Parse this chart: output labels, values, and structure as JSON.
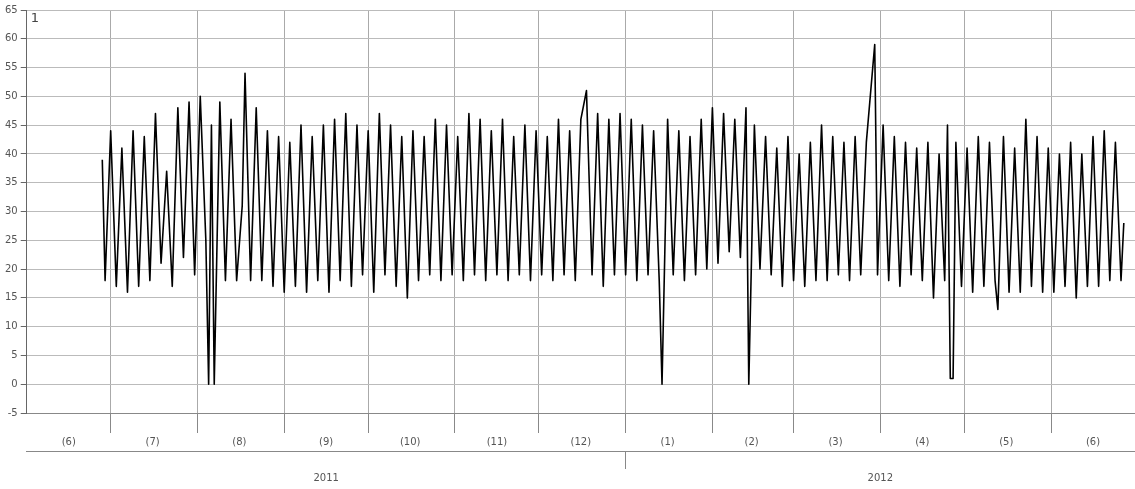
{
  "chart_data": {
    "type": "line",
    "ylabel": "1",
    "color": "#000000",
    "marker": "none",
    "line_style": "solid",
    "grid": true,
    "legend": false,
    "xlim": [
      "2011-06-01",
      "2012-07-01"
    ],
    "xticks": [
      {
        "value": "2011-06-16",
        "label": "(6)"
      },
      {
        "value": "2011-07-01",
        "label": null
      },
      {
        "value": "2011-07-16",
        "label": "(7)"
      },
      {
        "value": "2011-08-01",
        "label": null
      },
      {
        "value": "2011-08-16",
        "label": "(8)"
      },
      {
        "value": "2011-09-01",
        "label": null
      },
      {
        "value": "2011-09-16",
        "label": "(9)"
      },
      {
        "value": "2011-10-01",
        "label": null
      },
      {
        "value": "2011-10-16",
        "label": "(10)"
      },
      {
        "value": "2011-11-01",
        "label": null
      },
      {
        "value": "2011-11-16",
        "label": "(11)"
      },
      {
        "value": "2011-12-01",
        "label": null
      },
      {
        "value": "2011-12-16",
        "label": "(12)"
      },
      {
        "value": "2012-01-01",
        "label": null
      },
      {
        "value": "2012-01-16",
        "label": "(1)"
      },
      {
        "value": "2012-02-01",
        "label": null
      },
      {
        "value": "2012-02-15",
        "label": "(2)"
      },
      {
        "value": "2012-03-01",
        "label": null
      },
      {
        "value": "2012-03-16",
        "label": "(3)"
      },
      {
        "value": "2012-04-01",
        "label": null
      },
      {
        "value": "2012-04-16",
        "label": "(4)"
      },
      {
        "value": "2012-05-01",
        "label": null
      },
      {
        "value": "2012-05-16",
        "label": "(5)"
      },
      {
        "value": "2012-06-01",
        "label": null
      },
      {
        "value": "2012-06-16",
        "label": "(6)"
      }
    ],
    "x2lim": [
      "2011-06-01",
      "2012-07-01"
    ],
    "x2ticks": [
      {
        "value": "2011-09-16",
        "label": "2011"
      },
      {
        "value": "2012-01-01",
        "label": null
      },
      {
        "value": "2012-04-01",
        "label": "2012"
      }
    ],
    "ylim": [
      -5,
      65
    ],
    "yticks": [
      -5,
      0,
      5,
      10,
      15,
      20,
      25,
      30,
      35,
      40,
      45,
      50,
      55,
      60,
      65
    ],
    "x": [
      "2011-06-28",
      "2011-06-29",
      "2011-07-01",
      "2011-07-03",
      "2011-07-05",
      "2011-07-07",
      "2011-07-09",
      "2011-07-11",
      "2011-07-13",
      "2011-07-15",
      "2011-07-17",
      "2011-07-19",
      "2011-07-21",
      "2011-07-23",
      "2011-07-25",
      "2011-07-27",
      "2011-07-29",
      "2011-07-31",
      "2011-08-02",
      "2011-08-04",
      "2011-08-05",
      "2011-08-06",
      "2011-08-07",
      "2011-08-09",
      "2011-08-11",
      "2011-08-13",
      "2011-08-15",
      "2011-08-17",
      "2011-08-18",
      "2011-08-20",
      "2011-08-22",
      "2011-08-24",
      "2011-08-26",
      "2011-08-28",
      "2011-08-30",
      "2011-09-01",
      "2011-09-03",
      "2011-09-05",
      "2011-09-07",
      "2011-09-09",
      "2011-09-11",
      "2011-09-13",
      "2011-09-15",
      "2011-09-17",
      "2011-09-19",
      "2011-09-21",
      "2011-09-23",
      "2011-09-25",
      "2011-09-27",
      "2011-09-29",
      "2011-10-01",
      "2011-10-03",
      "2011-10-05",
      "2011-10-07",
      "2011-10-09",
      "2011-10-11",
      "2011-10-13",
      "2011-10-15",
      "2011-10-17",
      "2011-10-19",
      "2011-10-21",
      "2011-10-23",
      "2011-10-25",
      "2011-10-27",
      "2011-10-29",
      "2011-10-31",
      "2011-11-02",
      "2011-11-04",
      "2011-11-06",
      "2011-11-08",
      "2011-11-10",
      "2011-11-12",
      "2011-11-14",
      "2011-11-16",
      "2011-11-18",
      "2011-11-20",
      "2011-11-22",
      "2011-11-24",
      "2011-11-26",
      "2011-11-28",
      "2011-11-30",
      "2011-12-02",
      "2011-12-04",
      "2011-12-06",
      "2011-12-08",
      "2011-12-10",
      "2011-12-12",
      "2011-12-14",
      "2011-12-16",
      "2011-12-18",
      "2011-12-20",
      "2011-12-22",
      "2011-12-24",
      "2011-12-26",
      "2011-12-28",
      "2011-12-30",
      "2012-01-01",
      "2012-01-03",
      "2012-01-05",
      "2012-01-07",
      "2012-01-09",
      "2012-01-11",
      "2012-01-13",
      "2012-01-14",
      "2012-01-16",
      "2012-01-18",
      "2012-01-20",
      "2012-01-22",
      "2012-01-24",
      "2012-01-26",
      "2012-01-28",
      "2012-01-30",
      "2012-02-01",
      "2012-02-03",
      "2012-02-05",
      "2012-02-07",
      "2012-02-09",
      "2012-02-11",
      "2012-02-13",
      "2012-02-14",
      "2012-02-16",
      "2012-02-18",
      "2012-02-20",
      "2012-02-22",
      "2012-02-24",
      "2012-02-26",
      "2012-02-28",
      "2012-03-01",
      "2012-03-03",
      "2012-03-05",
      "2012-03-07",
      "2012-03-09",
      "2012-03-11",
      "2012-03-13",
      "2012-03-15",
      "2012-03-17",
      "2012-03-19",
      "2012-03-21",
      "2012-03-23",
      "2012-03-25",
      "2012-03-27",
      "2012-03-30",
      "2012-03-31",
      "2012-04-02",
      "2012-04-04",
      "2012-04-06",
      "2012-04-08",
      "2012-04-10",
      "2012-04-12",
      "2012-04-14",
      "2012-04-16",
      "2012-04-18",
      "2012-04-20",
      "2012-04-22",
      "2012-04-24",
      "2012-04-25",
      "2012-04-26",
      "2012-04-27",
      "2012-04-28",
      "2012-04-30",
      "2012-05-02",
      "2012-05-04",
      "2012-05-06",
      "2012-05-08",
      "2012-05-10",
      "2012-05-12",
      "2012-05-13",
      "2012-05-15",
      "2012-05-17",
      "2012-05-19",
      "2012-05-21",
      "2012-05-23",
      "2012-05-25",
      "2012-05-27",
      "2012-05-29",
      "2012-05-31",
      "2012-06-02",
      "2012-06-04",
      "2012-06-06",
      "2012-06-08",
      "2012-06-10",
      "2012-06-12",
      "2012-06-14",
      "2012-06-16",
      "2012-06-18",
      "2012-06-20",
      "2012-06-22",
      "2012-06-24",
      "2012-06-26",
      "2012-06-27"
    ],
    "values": [
      39,
      18,
      44,
      17,
      41,
      16,
      44,
      17,
      43,
      18,
      47,
      21,
      37,
      17,
      48,
      22,
      49,
      19,
      50,
      25,
      0,
      45,
      0,
      49,
      18,
      46,
      18,
      31,
      54,
      18,
      48,
      18,
      44,
      17,
      43,
      16,
      42,
      17,
      45,
      16,
      43,
      18,
      45,
      16,
      46,
      18,
      47,
      17,
      45,
      19,
      44,
      16,
      47,
      19,
      45,
      17,
      43,
      15,
      44,
      18,
      43,
      19,
      46,
      18,
      45,
      19,
      43,
      18,
      47,
      19,
      46,
      18,
      44,
      19,
      46,
      18,
      43,
      19,
      45,
      18,
      44,
      19,
      43,
      18,
      46,
      19,
      44,
      18,
      46,
      51,
      19,
      47,
      17,
      46,
      19,
      47,
      19,
      46,
      18,
      45,
      19,
      44,
      18,
      0,
      46,
      19,
      44,
      18,
      43,
      19,
      46,
      20,
      48,
      21,
      47,
      23,
      46,
      22,
      48,
      0,
      45,
      20,
      43,
      19,
      41,
      17,
      43,
      18,
      40,
      17,
      42,
      18,
      45,
      18,
      43,
      19,
      42,
      18,
      43,
      19,
      42,
      59,
      19,
      45,
      18,
      43,
      17,
      42,
      19,
      41,
      18,
      42,
      15,
      40,
      18,
      45,
      1,
      1,
      42,
      17,
      41,
      16,
      43,
      17,
      42,
      18,
      13,
      43,
      16,
      41,
      16,
      46,
      17,
      43,
      16,
      41,
      16,
      40,
      17,
      42,
      15,
      40,
      17,
      43,
      17,
      44,
      18,
      42,
      18,
      28
    ]
  }
}
